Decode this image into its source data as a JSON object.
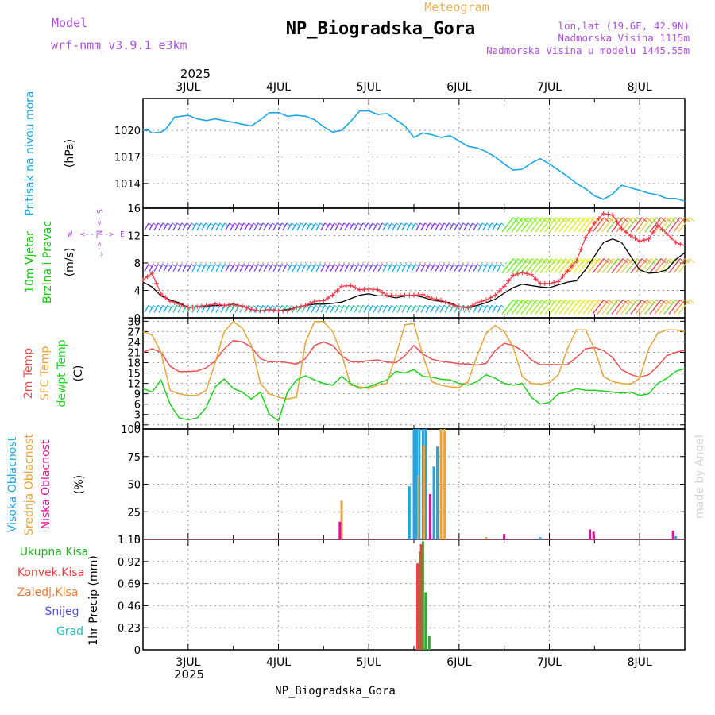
{
  "header": {
    "model_label": "Model",
    "model_name": "wrf-nmm_v3.9.1 e3km",
    "product": "Meteogram",
    "station": "NP_Biogradska_Gora",
    "lonlat": "lon,lat (19.6E, 42.9N)",
    "elevation": "Nadmorska Visina 1115m",
    "model_elevation": "Nadmorska Visina u modelu 1445.55m",
    "footer_station": "NP_Biogradska_Gora",
    "watermark": "made by Angel",
    "year": "2025"
  },
  "colors": {
    "pressure": "#1ba7e6",
    "wind_green": "#11c811",
    "wind_label_purple": "#b050e0",
    "t2m": "#f05050",
    "sfc": "#e8a33a",
    "dew": "#1fd01f",
    "high": "#1ba7e6",
    "mid": "#e8a33a",
    "low": "#e0109a",
    "total": "#27b027",
    "conv": "#f04040",
    "frozen": "#f07a30",
    "snow": "#5050e0",
    "graupel": "#20c0c0"
  },
  "time_axis": {
    "labels": [
      "3JUL",
      "4JUL",
      "5JUL",
      "6JUL",
      "7JUL",
      "8JUL"
    ],
    "start_day": 2.5,
    "end_day": 8.5
  },
  "chart_data": [
    {
      "type": "line",
      "panel": "pressure",
      "ylabel": "Pritisak na nivou mora",
      "unit": "(hPa)",
      "yticks": [
        1014,
        1017,
        1020
      ],
      "ylim": [
        1011.2,
        1023.6
      ],
      "series": [
        {
          "name": "MSLP",
          "x": [
            2.5,
            2.55,
            2.6,
            2.7,
            2.75,
            2.85,
            3.0,
            3.1,
            3.2,
            3.3,
            3.4,
            3.5,
            3.6,
            3.7,
            3.8,
            3.9,
            4.0,
            4.1,
            4.2,
            4.3,
            4.4,
            4.5,
            4.6,
            4.7,
            4.8,
            4.9,
            5.0,
            5.1,
            5.2,
            5.3,
            5.4,
            5.5,
            5.6,
            5.7,
            5.8,
            5.9,
            6.0,
            6.1,
            6.2,
            6.3,
            6.4,
            6.5,
            6.6,
            6.7,
            6.8,
            6.9,
            7.0,
            7.1,
            7.2,
            7.3,
            7.4,
            7.5,
            7.6,
            7.7,
            7.8,
            7.9,
            8.0,
            8.1,
            8.2,
            8.3,
            8.4,
            8.5
          ],
          "values": [
            1020.0,
            1020.1,
            1019.7,
            1019.8,
            1020.1,
            1021.5,
            1021.7,
            1021.3,
            1021.1,
            1021.3,
            1021.1,
            1020.9,
            1020.7,
            1020.5,
            1021.2,
            1022.0,
            1022.0,
            1021.6,
            1021.7,
            1021.6,
            1021.2,
            1020.4,
            1019.8,
            1020.0,
            1021.0,
            1022.2,
            1022.2,
            1021.8,
            1021.9,
            1021.2,
            1020.5,
            1019.2,
            1019.7,
            1019.5,
            1019.2,
            1019.4,
            1018.8,
            1018.2,
            1018.0,
            1017.6,
            1017.0,
            1016.2,
            1015.5,
            1015.6,
            1016.3,
            1016.8,
            1016.2,
            1015.5,
            1014.8,
            1014.0,
            1013.4,
            1012.6,
            1012.2,
            1012.8,
            1013.8,
            1013.5,
            1013.2,
            1012.9,
            1012.7,
            1012.3,
            1012.3,
            1012.0
          ]
        }
      ]
    },
    {
      "type": "line",
      "panel": "wind",
      "ylabel": [
        "10m Vjetar",
        "Brzina i Pravac"
      ],
      "unit": "(m/s)",
      "direction_legend": [
        "N",
        "<-",
        "^",
        "->",
        "S",
        "W",
        "<--|-->",
        "E"
      ],
      "yticks": [
        0,
        4,
        8,
        12,
        16
      ],
      "ylim": [
        0,
        16
      ],
      "barb_levels": [
        1,
        7,
        13
      ],
      "series": [
        {
          "name": "Wind speed",
          "x": [
            2.5,
            2.6,
            2.7,
            2.8,
            2.9,
            3.0,
            3.1,
            3.2,
            3.3,
            3.4,
            3.5,
            3.6,
            3.7,
            3.8,
            3.9,
            4.0,
            4.1,
            4.2,
            4.3,
            4.4,
            4.5,
            4.6,
            4.7,
            4.8,
            4.9,
            5.0,
            5.1,
            5.2,
            5.3,
            5.4,
            5.5,
            5.6,
            5.7,
            5.8,
            5.9,
            6.0,
            6.1,
            6.2,
            6.3,
            6.4,
            6.5,
            6.6,
            6.7,
            6.8,
            6.9,
            7.0,
            7.1,
            7.2,
            7.3,
            7.4,
            7.5,
            7.6,
            7.7,
            7.8,
            7.9,
            8.0,
            8.1,
            8.2,
            8.3,
            8.4,
            8.5
          ],
          "values": [
            5.2,
            4.5,
            3.2,
            2.6,
            2.2,
            1.5,
            1.6,
            1.7,
            1.8,
            1.8,
            2.0,
            1.7,
            1.2,
            1.0,
            1.2,
            1.0,
            1.2,
            1.5,
            1.8,
            2.0,
            2.0,
            2.1,
            2.3,
            2.8,
            3.3,
            3.5,
            3.2,
            3.2,
            2.9,
            3.2,
            3.3,
            3.0,
            2.6,
            2.4,
            2.2,
            1.6,
            1.5,
            1.8,
            2.2,
            2.7,
            3.6,
            4.4,
            4.9,
            4.7,
            4.5,
            4.4,
            4.8,
            5.2,
            5.4,
            7.0,
            9.0,
            11.0,
            11.5,
            11.0,
            9.0,
            7.0,
            6.5,
            6.6,
            7.0,
            8.5,
            9.5
          ]
        },
        {
          "name": "Wind gust",
          "x": [
            2.5,
            2.6,
            2.7,
            2.8,
            2.9,
            3.0,
            3.1,
            3.2,
            3.3,
            3.4,
            3.5,
            3.6,
            3.7,
            3.8,
            3.9,
            4.0,
            4.1,
            4.2,
            4.3,
            4.4,
            4.5,
            4.6,
            4.7,
            4.8,
            4.9,
            5.0,
            5.1,
            5.2,
            5.3,
            5.4,
            5.5,
            5.6,
            5.7,
            5.8,
            5.9,
            6.0,
            6.1,
            6.2,
            6.3,
            6.4,
            6.5,
            6.6,
            6.7,
            6.8,
            6.9,
            7.0,
            7.1,
            7.2,
            7.3,
            7.4,
            7.5,
            7.6,
            7.7,
            7.8,
            7.9,
            8.0,
            8.1,
            8.2,
            8.3,
            8.4,
            8.5
          ],
          "values": [
            5.5,
            6.5,
            3.5,
            2.4,
            2.0,
            1.5,
            1.6,
            1.8,
            2.0,
            1.8,
            1.9,
            1.7,
            1.2,
            1.0,
            1.2,
            1.0,
            1.0,
            1.5,
            1.8,
            2.4,
            2.5,
            3.3,
            4.6,
            4.7,
            4.1,
            4.2,
            4.1,
            3.3,
            3.2,
            3.3,
            3.3,
            3.4,
            2.8,
            2.6,
            2.0,
            1.6,
            1.4,
            2.2,
            2.6,
            3.3,
            4.6,
            6.2,
            6.6,
            6.3,
            5.0,
            5.0,
            5.3,
            6.8,
            8.3,
            11.7,
            13.8,
            15.2,
            15.0,
            13.0,
            12.0,
            11.2,
            11.5,
            13.5,
            12.3,
            11.0,
            10.5
          ]
        }
      ]
    },
    {
      "type": "line",
      "panel": "temperature",
      "ylabel": [
        "2m Temp",
        "SFC Temp",
        "dewpt Temp"
      ],
      "unit": "(C)",
      "yticks": [
        0,
        3,
        6,
        9,
        12,
        15,
        18,
        21,
        24,
        27,
        30
      ],
      "ylim": [
        -1.2,
        31
      ],
      "series": [
        {
          "name": "2m Temp",
          "x": [
            2.5,
            2.6,
            2.7,
            2.8,
            2.9,
            3.0,
            3.1,
            3.2,
            3.3,
            3.4,
            3.5,
            3.6,
            3.7,
            3.8,
            3.9,
            4.0,
            4.1,
            4.2,
            4.3,
            4.4,
            4.5,
            4.6,
            4.7,
            4.8,
            4.9,
            5.0,
            5.1,
            5.2,
            5.3,
            5.4,
            5.5,
            5.6,
            5.7,
            5.8,
            5.9,
            6.0,
            6.1,
            6.2,
            6.3,
            6.4,
            6.5,
            6.6,
            6.7,
            6.8,
            6.9,
            7.0,
            7.1,
            7.2,
            7.3,
            7.4,
            7.5,
            7.6,
            7.7,
            7.8,
            7.9,
            8.0,
            8.1,
            8.2,
            8.3,
            8.4,
            8.5
          ],
          "values": [
            21,
            22,
            21,
            17,
            15.4,
            15.4,
            15.6,
            16.5,
            18.5,
            22,
            24.4,
            24,
            22.5,
            19.2,
            18.2,
            18.4,
            18,
            17.6,
            19.2,
            23,
            24,
            23,
            20,
            18.3,
            18.2,
            18.6,
            18.8,
            18.2,
            18,
            20,
            23,
            20.5,
            19,
            18.4,
            18.1,
            17.7,
            17.6,
            17.3,
            17.8,
            21.5,
            23.6,
            23,
            21.5,
            18.8,
            17.4,
            17.5,
            17.4,
            17.4,
            19.5,
            22,
            22.4,
            21.5,
            19.5,
            16,
            14.6,
            13.8,
            14.5,
            17,
            20,
            21,
            21.6
          ]
        },
        {
          "name": "SFC Temp",
          "x": [
            2.5,
            2.6,
            2.7,
            2.8,
            2.9,
            3.0,
            3.1,
            3.2,
            3.3,
            3.4,
            3.5,
            3.6,
            3.7,
            3.8,
            3.9,
            4.0,
            4.1,
            4.2,
            4.3,
            4.4,
            4.5,
            4.6,
            4.7,
            4.8,
            4.9,
            5.0,
            5.1,
            5.2,
            5.3,
            5.4,
            5.5,
            5.6,
            5.7,
            5.8,
            5.9,
            6.0,
            6.1,
            6.2,
            6.3,
            6.4,
            6.5,
            6.6,
            6.7,
            6.8,
            6.9,
            7.0,
            7.1,
            7.2,
            7.3,
            7.4,
            7.5,
            7.6,
            7.7,
            7.8,
            7.9,
            8.0,
            8.1,
            8.2,
            8.3,
            8.4,
            8.5
          ],
          "values": [
            27,
            26,
            21,
            10,
            9,
            8.5,
            8.5,
            10,
            18,
            27,
            29.9,
            28,
            23,
            12,
            9,
            8,
            7.5,
            8,
            24,
            29.9,
            29.9,
            27,
            20.5,
            11.5,
            11,
            10.5,
            11.5,
            12,
            20,
            29,
            29.3,
            20,
            12.5,
            11.5,
            11,
            10.8,
            12.5,
            20,
            26.5,
            28.8,
            27,
            22.5,
            14,
            12,
            11.8,
            12.2,
            14.5,
            22,
            27.5,
            27.5,
            22,
            14,
            12.5,
            12,
            11.8,
            13.5,
            22,
            26.5,
            27.5,
            27.5,
            27
          ]
        },
        {
          "name": "dewpt Temp",
          "x": [
            2.5,
            2.6,
            2.7,
            2.8,
            2.9,
            3.0,
            3.1,
            3.2,
            3.3,
            3.4,
            3.5,
            3.6,
            3.7,
            3.8,
            3.9,
            4.0,
            4.1,
            4.2,
            4.3,
            4.4,
            4.5,
            4.6,
            4.7,
            4.8,
            4.9,
            5.0,
            5.1,
            5.2,
            5.3,
            5.4,
            5.5,
            5.6,
            5.7,
            5.8,
            5.9,
            6.0,
            6.1,
            6.2,
            6.3,
            6.4,
            6.5,
            6.6,
            6.7,
            6.8,
            6.9,
            7.0,
            7.1,
            7.2,
            7.3,
            7.4,
            7.5,
            7.6,
            7.7,
            7.8,
            7.9,
            8.0,
            8.1,
            8.2,
            8.3,
            8.4,
            8.5
          ],
          "values": [
            10.5,
            9.5,
            13,
            6,
            2,
            1.5,
            2,
            5,
            11,
            13.3,
            10.5,
            9.5,
            7.5,
            9.5,
            3,
            1.2,
            9.5,
            13,
            14.2,
            13,
            12,
            11.5,
            14,
            12,
            10.5,
            11,
            12,
            13,
            15.5,
            15,
            16,
            14,
            13.8,
            13.2,
            13,
            12,
            11.5,
            12.5,
            14.5,
            13.5,
            12,
            11.5,
            12,
            8,
            6,
            6.5,
            9,
            9.5,
            10.5,
            10,
            10,
            9.8,
            9.5,
            9.2,
            9.5,
            8.5,
            9,
            12,
            13.5,
            15.5,
            16.3
          ]
        }
      ]
    },
    {
      "type": "bar",
      "panel": "cloud",
      "ylabel": [
        "Visoka Oblacnost",
        "Srednja Oblacnost",
        "Niska Oblacnost"
      ],
      "unit": "(%)",
      "yticks": [
        0,
        25,
        50,
        75,
        100
      ],
      "ylim": [
        0,
        100
      ],
      "series": [
        {
          "name": "Visoka Oblacnost",
          "x": [
            5.45,
            5.5,
            5.53,
            5.56,
            5.6,
            5.63,
            5.72,
            5.76,
            6.5,
            6.9,
            8.4
          ],
          "values": [
            48,
            100,
            100,
            100,
            100,
            100,
            66,
            84,
            4,
            2,
            3
          ]
        },
        {
          "name": "Srednja Oblacnost",
          "x": [
            4.7,
            5.55,
            5.61,
            5.8,
            5.84,
            6.3
          ],
          "values": [
            35,
            58,
            85,
            100,
            100,
            2
          ]
        },
        {
          "name": "Niska Oblacnost",
          "x": [
            4.68,
            5.68,
            6.5,
            7.45,
            7.49,
            8.37
          ],
          "values": [
            16,
            41,
            5,
            9,
            7,
            8
          ]
        }
      ]
    },
    {
      "type": "bar",
      "panel": "precip",
      "ylabel": "1hr Precip",
      "unit": "(mm)",
      "yticks": [
        0,
        0.23,
        0.46,
        0.69,
        0.92,
        1.15
      ],
      "ylim": [
        0,
        1.15
      ],
      "legend": [
        "Ukupna Kisa",
        "Konvek.Kisa",
        "Zaledj.Kisa",
        "Snijeg",
        "Grad"
      ],
      "series": [
        {
          "name": "Ukupna Kisa",
          "x": [
            5.57,
            5.6,
            5.63,
            5.67
          ],
          "values": [
            1.02,
            1.13,
            0.6,
            0.15
          ]
        },
        {
          "name": "Konvek.Kisa",
          "x": [
            5.54,
            5.58
          ],
          "values": [
            0.9,
            1.1
          ]
        }
      ]
    }
  ]
}
